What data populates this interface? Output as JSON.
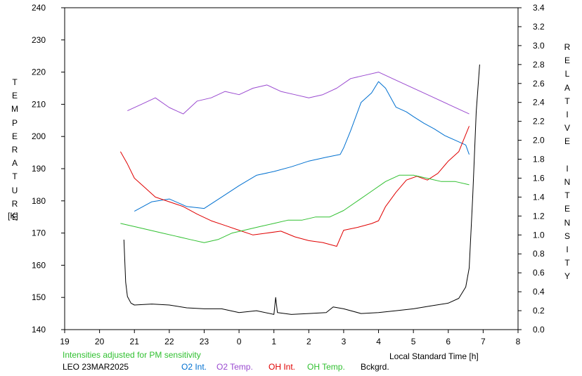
{
  "chart_data": {
    "type": "line",
    "left_axis_title": "TEMPERATURE",
    "left_axis_unit": "[K]",
    "right_axis_title": "RELATIVE INTENSITY",
    "xlabel": "Local Standard Time [h]",
    "note": "Intensities adjusted for PM sensitivity",
    "station_date": "LEO 23MAR2025",
    "x_tick_labels": [
      "19",
      "20",
      "21",
      "22",
      "23",
      "0",
      "1",
      "2",
      "3",
      "4",
      "5",
      "6",
      "7",
      "8"
    ],
    "xlim": [
      19,
      32
    ],
    "ylim_left": [
      140,
      240
    ],
    "ylim_right": [
      0,
      3.4
    ],
    "y_left_ticks": [
      140,
      150,
      160,
      170,
      180,
      190,
      200,
      210,
      220,
      230,
      240
    ],
    "y_right_ticks": [
      "0.0",
      "0.2",
      "0.4",
      "0.6",
      "0.8",
      "1.0",
      "1.2",
      "1.4",
      "1.6",
      "1.8",
      "2.0",
      "2.2",
      "2.4",
      "2.6",
      "2.8",
      "3.0",
      "3.2",
      "3.4"
    ],
    "colors": {
      "o2_int": "#0070d0",
      "o2_temp": "#9a4ad0",
      "oh_int": "#e00000",
      "oh_temp": "#30c030",
      "bckgrd": "#000000",
      "note": "#30c030"
    },
    "series": [
      {
        "name": "O2 Int.",
        "key": "o2_int",
        "axis": "right",
        "x": [
          21.0,
          21.5,
          22.0,
          22.5,
          23.0,
          23.5,
          24.0,
          24.5,
          25.0,
          25.5,
          26.0,
          26.5,
          26.9,
          27.0,
          27.2,
          27.5,
          27.8,
          28.0,
          28.2,
          28.5,
          28.8,
          29.0,
          29.3,
          29.6,
          29.9,
          30.2,
          30.5,
          30.6
        ],
        "values": [
          1.25,
          1.35,
          1.38,
          1.3,
          1.28,
          1.4,
          1.52,
          1.63,
          1.67,
          1.72,
          1.78,
          1.82,
          1.85,
          1.92,
          2.1,
          2.4,
          2.5,
          2.62,
          2.55,
          2.35,
          2.3,
          2.25,
          2.18,
          2.12,
          2.05,
          2.0,
          1.95,
          1.85
        ]
      },
      {
        "name": "O2 Temp.",
        "key": "o2_temp",
        "axis": "left",
        "x": [
          20.8,
          21.2,
          21.6,
          22.0,
          22.4,
          22.8,
          23.2,
          23.6,
          24.0,
          24.4,
          24.8,
          25.2,
          25.6,
          26.0,
          26.4,
          26.8,
          27.2,
          27.6,
          28.0,
          28.4,
          28.8,
          29.2,
          29.6,
          30.0,
          30.4,
          30.6
        ],
        "values": [
          208,
          210,
          212,
          209,
          207,
          211,
          212,
          214,
          213,
          215,
          216,
          214,
          213,
          212,
          213,
          215,
          218,
          219,
          220,
          218,
          216,
          214,
          212,
          210,
          208,
          207
        ]
      },
      {
        "name": "OH Int.",
        "key": "oh_int",
        "axis": "right",
        "x": [
          20.6,
          20.8,
          21.0,
          21.3,
          21.6,
          22.0,
          22.4,
          22.8,
          23.2,
          23.6,
          24.0,
          24.4,
          24.8,
          25.2,
          25.6,
          26.0,
          26.4,
          26.8,
          27.0,
          27.4,
          27.8,
          28.0,
          28.2,
          28.5,
          28.8,
          29.1,
          29.4,
          29.7,
          30.0,
          30.3,
          30.6
        ],
        "values": [
          1.88,
          1.75,
          1.6,
          1.5,
          1.4,
          1.35,
          1.3,
          1.22,
          1.15,
          1.1,
          1.05,
          1.0,
          1.02,
          1.04,
          0.98,
          0.94,
          0.92,
          0.88,
          1.05,
          1.08,
          1.12,
          1.15,
          1.3,
          1.45,
          1.58,
          1.62,
          1.58,
          1.65,
          1.78,
          1.88,
          2.15
        ]
      },
      {
        "name": "OH Temp.",
        "key": "oh_temp",
        "axis": "left",
        "x": [
          20.6,
          21.0,
          21.4,
          21.8,
          22.2,
          22.6,
          23.0,
          23.4,
          23.8,
          24.2,
          24.6,
          25.0,
          25.4,
          25.8,
          26.2,
          26.6,
          27.0,
          27.4,
          27.8,
          28.2,
          28.6,
          29.0,
          29.4,
          29.8,
          30.2,
          30.6
        ],
        "values": [
          173,
          172,
          171,
          170,
          169,
          168,
          167,
          168,
          170,
          171,
          172,
          173,
          174,
          174,
          175,
          175,
          177,
          180,
          183,
          186,
          188,
          188,
          187,
          186,
          186,
          185
        ]
      },
      {
        "name": "Bckgrd.",
        "key": "bckgrd",
        "axis": "right",
        "x": [
          20.7,
          20.75,
          20.8,
          20.9,
          21.0,
          21.5,
          22.0,
          22.5,
          23.0,
          23.5,
          24.0,
          24.5,
          25.0,
          25.05,
          25.1,
          25.5,
          26.0,
          26.5,
          26.7,
          27.0,
          27.5,
          28.0,
          28.5,
          29.0,
          29.5,
          30.0,
          30.3,
          30.5,
          30.6,
          30.7,
          30.8,
          30.9
        ],
        "values": [
          0.95,
          0.5,
          0.35,
          0.28,
          0.26,
          0.27,
          0.26,
          0.23,
          0.22,
          0.22,
          0.18,
          0.2,
          0.16,
          0.34,
          0.18,
          0.16,
          0.17,
          0.18,
          0.24,
          0.22,
          0.17,
          0.18,
          0.2,
          0.22,
          0.25,
          0.28,
          0.33,
          0.45,
          0.65,
          1.4,
          2.3,
          2.8
        ]
      }
    ]
  }
}
